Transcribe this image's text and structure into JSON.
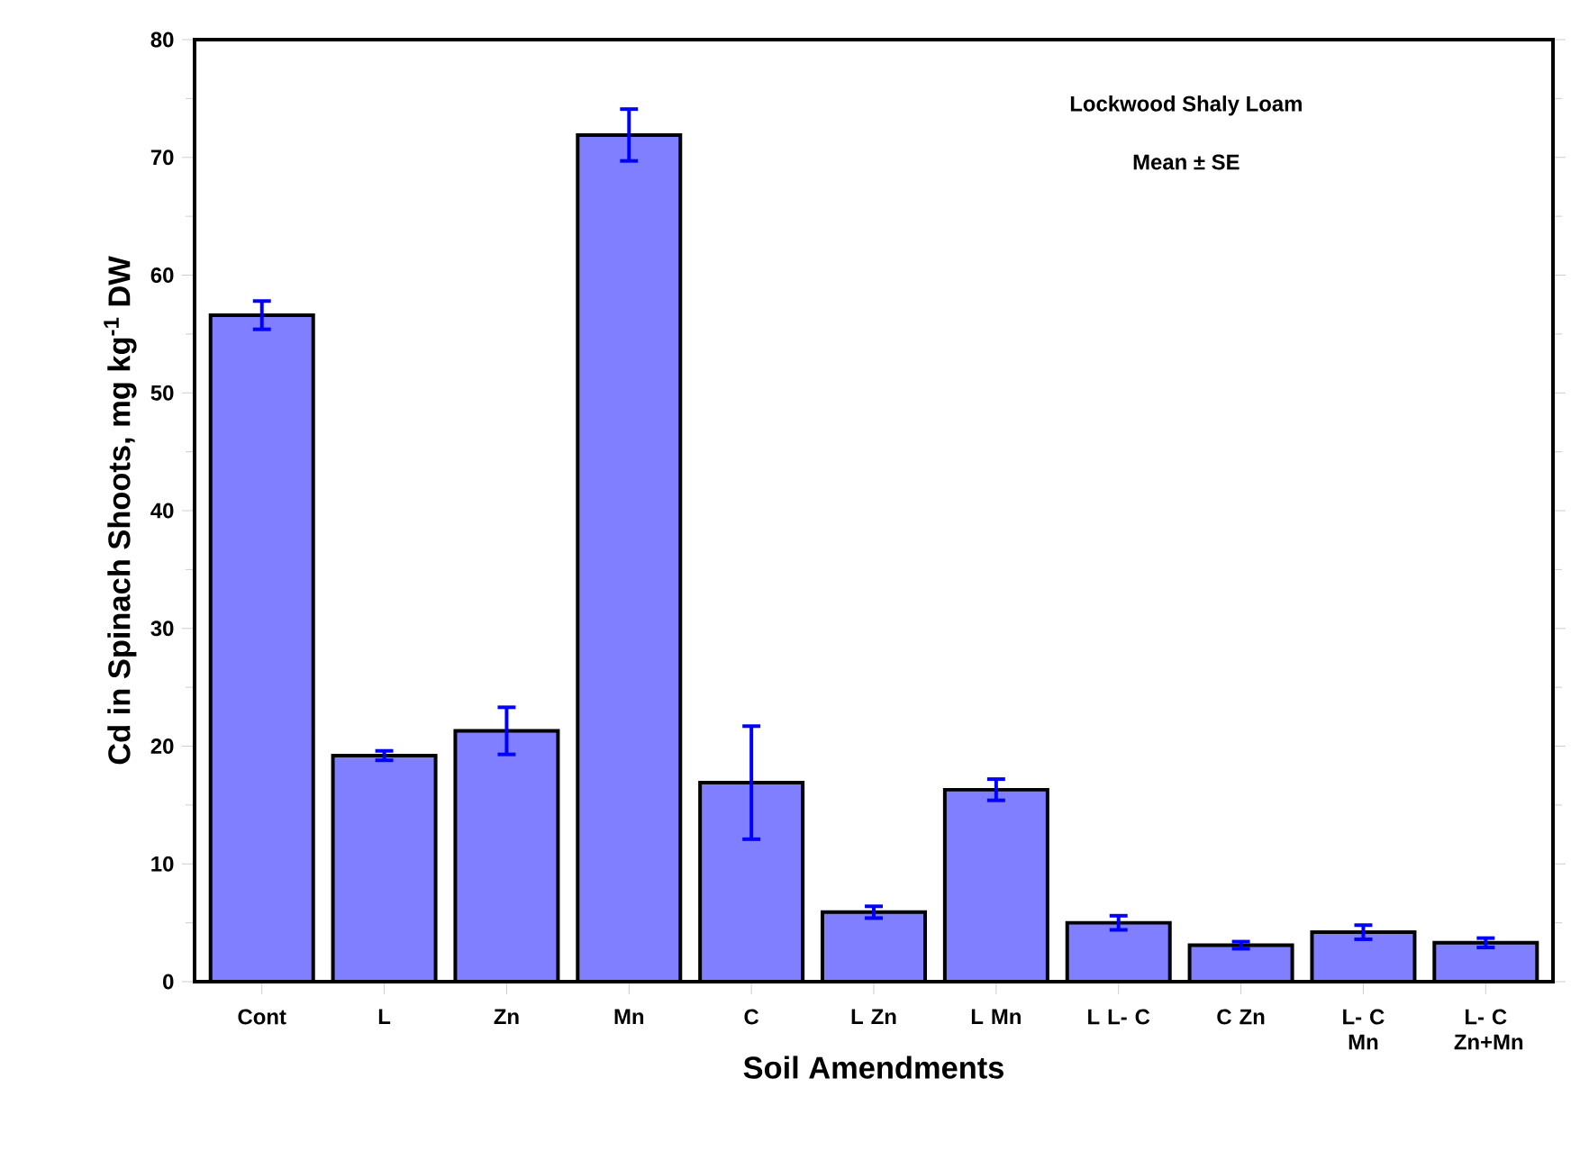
{
  "chart_data": {
    "type": "bar",
    "xlabel": "Soil Amendments",
    "ylabel": "Cd in Spinach Shoots, mg kg$^{-1}$ DW",
    "annotations": [
      "Lockwood Shaly Loam",
      "Mean ± SE"
    ],
    "categories": [
      "Cont",
      "L",
      "Zn",
      "Mn",
      "C",
      "L Zn",
      "L Mn",
      "L L- C",
      "C Zn",
      "L- C Mn",
      "L- C Zn+Mn"
    ],
    "values": [
      56.6,
      19.2,
      21.3,
      71.9,
      16.9,
      5.9,
      16.3,
      5.0,
      3.1,
      4.2,
      3.3
    ],
    "errors": [
      1.2,
      0.4,
      2.0,
      2.2,
      4.8,
      0.5,
      0.9,
      0.6,
      0.3,
      0.6,
      0.4
    ],
    "color": "#7f7fff",
    "ylim": [
      0,
      80
    ],
    "yticks": [
      0,
      10,
      20,
      30,
      40,
      50,
      60,
      70,
      80
    ]
  }
}
